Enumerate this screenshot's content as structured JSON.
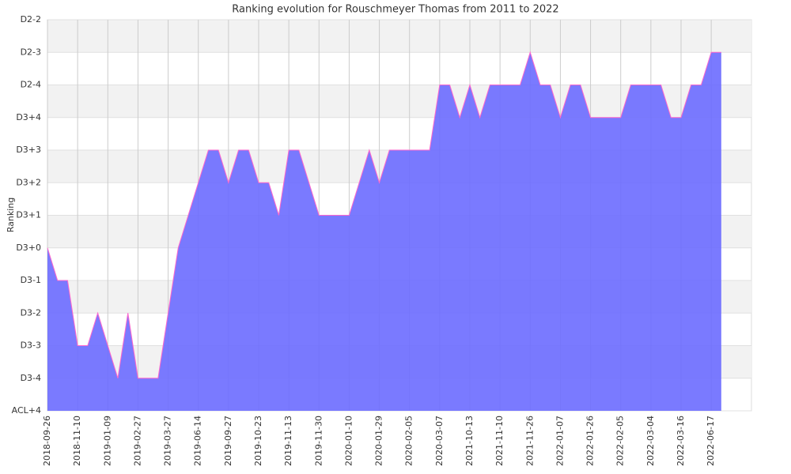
{
  "chart_data": {
    "type": "area",
    "title": "Ranking evolution for Rouschmeyer Thomas from 2011 to 2022",
    "y_label": "Ranking",
    "categories": [
      "2018-09-26",
      null,
      null,
      "2018-11-10",
      null,
      null,
      "2019-01-09",
      null,
      null,
      "2019-02-27",
      null,
      null,
      "2019-03-27",
      null,
      null,
      "2019-06-14",
      null,
      null,
      "2019-09-27",
      null,
      null,
      "2019-10-23",
      null,
      null,
      "2019-11-13",
      null,
      null,
      "2019-11-30",
      null,
      null,
      "2020-01-10",
      null,
      null,
      "2020-01-29",
      null,
      null,
      "2020-02-05",
      null,
      null,
      "2020-03-07",
      null,
      null,
      "2021-10-13",
      null,
      null,
      "2021-11-10",
      null,
      null,
      "2021-11-26",
      null,
      null,
      "2022-01-07",
      null,
      null,
      "2022-01-26",
      null,
      null,
      "2022-02-05",
      null,
      null,
      "2022-03-04",
      null,
      null,
      "2022-03-16",
      null,
      null,
      "2022-06-17",
      null
    ],
    "series": [
      {
        "name": "Ranking",
        "color": "#6b6bff",
        "line_color": "#ff66cc",
        "values": [
          5,
          4,
          4,
          2,
          2,
          3,
          2,
          1,
          3,
          1,
          1,
          1,
          3,
          5,
          6,
          7,
          8,
          8,
          7,
          8,
          8,
          7,
          7,
          6,
          8,
          8,
          7,
          6,
          6,
          6,
          6,
          7,
          8,
          7,
          8,
          8,
          8,
          8,
          8,
          10,
          10,
          9,
          10,
          9,
          10,
          10,
          10,
          10,
          11,
          10,
          10,
          9,
          10,
          10,
          9,
          9,
          9,
          9,
          10,
          10,
          10,
          10,
          9,
          9,
          10,
          10,
          11,
          11
        ]
      }
    ],
    "ylim": [
      0,
      12
    ],
    "yticks": [
      {
        "value": 0,
        "label": "ACL+4"
      },
      {
        "value": 1,
        "label": "D3-4"
      },
      {
        "value": 2,
        "label": "D3-3"
      },
      {
        "value": 3,
        "label": "D3-2"
      },
      {
        "value": 4,
        "label": "D3-1"
      },
      {
        "value": 5,
        "label": "D3+0"
      },
      {
        "value": 6,
        "label": "D3+1"
      },
      {
        "value": 7,
        "label": "D3+2"
      },
      {
        "value": 8,
        "label": "D3+3"
      },
      {
        "value": 9,
        "label": "D3+4"
      },
      {
        "value": 10,
        "label": "D2-4"
      },
      {
        "value": 11,
        "label": "D2-3"
      },
      {
        "value": 12,
        "label": "D2-2"
      }
    ],
    "grid": true
  }
}
